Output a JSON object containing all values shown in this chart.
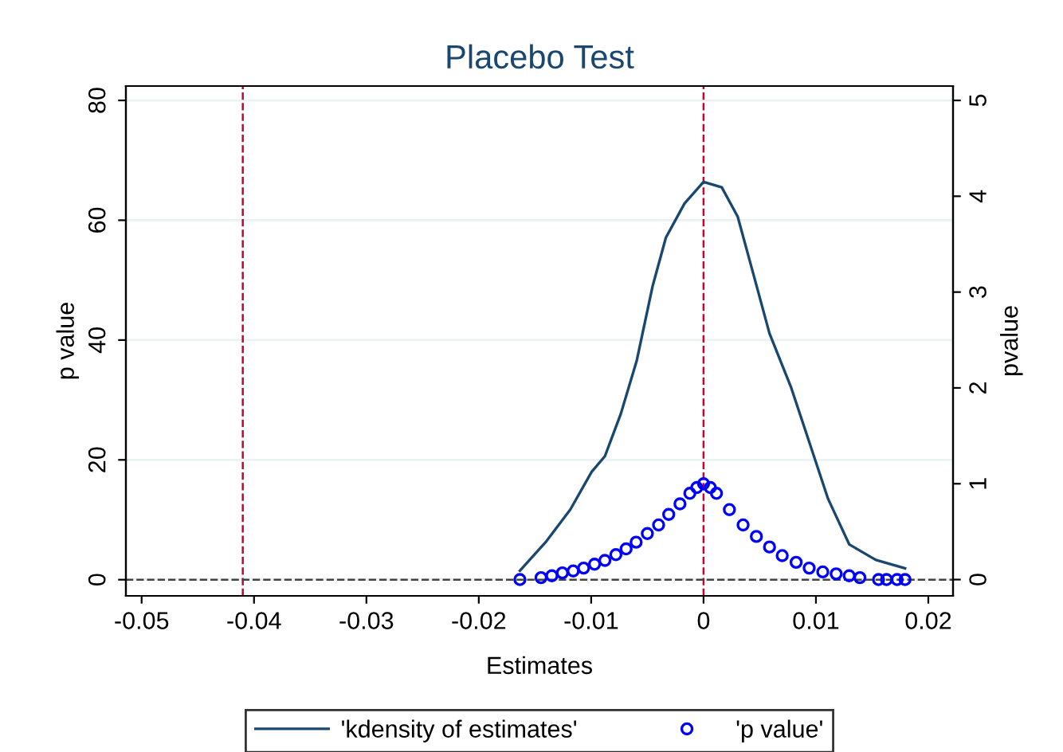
{
  "chart_data": {
    "type": "line",
    "title": "Placebo Test",
    "xlabel": "Estimates",
    "ylabel": "p value",
    "y2label": "pvalue",
    "xlim": [
      -0.0514,
      0.0222
    ],
    "xticks": [
      -0.05,
      -0.04,
      -0.03,
      -0.02,
      -0.01,
      0,
      0.01,
      0.02
    ],
    "ylim": [
      -2.7,
      82.4
    ],
    "yticks": [
      0,
      20,
      40,
      60,
      80
    ],
    "y2lim": [
      -0.17,
      5.15
    ],
    "y2ticks": [
      0,
      1,
      2,
      3,
      4,
      5
    ],
    "grid": "y",
    "legend": "bottom",
    "series": [
      {
        "name": "'kdensity of estimates'",
        "color": "#1a476f",
        "marker": "none",
        "line_style": "solid",
        "x": [
          -0.01634,
          -0.01399,
          -0.01186,
          -0.00996,
          -0.00878,
          -0.00736,
          -0.00594,
          -0.00452,
          -0.00335,
          -0.00169,
          0.0,
          0.00162,
          0.00304,
          0.00445,
          0.00587,
          0.00777,
          0.00919,
          0.01108,
          0.01296,
          0.01533,
          0.01793
        ],
        "values": [
          1.5,
          6.4,
          11.7,
          18.0,
          20.6,
          27.7,
          36.6,
          49.1,
          57.1,
          62.8,
          66.4,
          65.5,
          60.6,
          50.9,
          41.1,
          32.2,
          24.2,
          13.5,
          5.9,
          3.3,
          1.9
        ]
      },
      {
        "name": "'p value'",
        "type": "scatter",
        "axis": "y2",
        "color": "#0000ff",
        "marker": "circle",
        "x": [
          -0.01634,
          -0.01446,
          -0.0135,
          -0.01256,
          -0.0116,
          -0.01067,
          -0.0097,
          -0.00878,
          -0.0078,
          -0.00689,
          -0.006,
          -0.005,
          -0.004,
          -0.0031,
          -0.0021,
          -0.00122,
          -0.0006,
          0.0,
          0.0006,
          0.00115,
          0.0023,
          0.00352,
          0.0047,
          0.00587,
          0.007,
          0.00824,
          0.0094,
          0.01061,
          0.0118,
          0.01296,
          0.01391,
          0.01557,
          0.01628,
          0.01722,
          0.01793
        ],
        "values": [
          0.0,
          0.02,
          0.04,
          0.07,
          0.09,
          0.12,
          0.16,
          0.2,
          0.26,
          0.32,
          0.39,
          0.48,
          0.57,
          0.68,
          0.79,
          0.9,
          0.96,
          1.0,
          0.96,
          0.9,
          0.73,
          0.57,
          0.45,
          0.34,
          0.25,
          0.18,
          0.12,
          0.08,
          0.06,
          0.04,
          0.02,
          0.0,
          0.0,
          0.0,
          0.0
        ]
      }
    ],
    "ref_lines": [
      {
        "axis": "x",
        "value": -0.041,
        "color": "#c10534",
        "line_style": "dashed"
      },
      {
        "axis": "x",
        "value": 0,
        "color": "#c10534",
        "line_style": "dashed"
      },
      {
        "axis": "y",
        "value": 0,
        "color": "#444444",
        "line_style": "dashed"
      }
    ]
  }
}
